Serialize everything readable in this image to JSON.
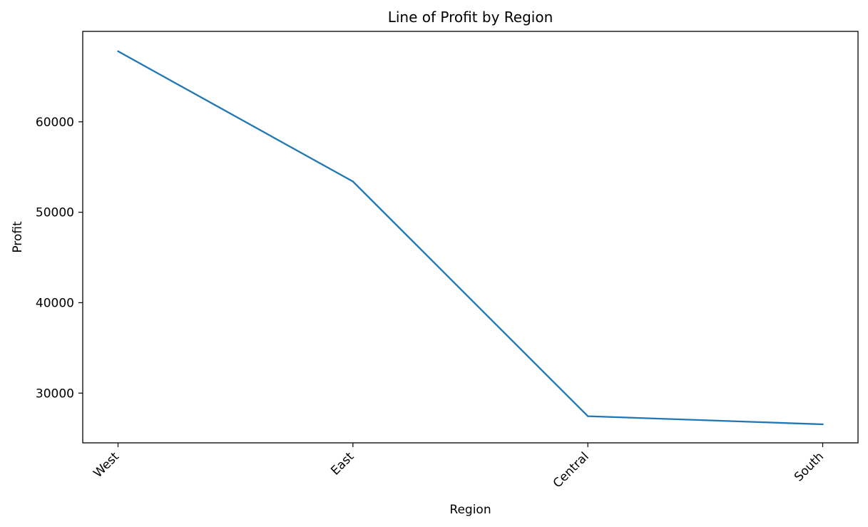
{
  "chart_data": {
    "type": "line",
    "title": "Line of Profit by Region",
    "xlabel": "Region",
    "ylabel": "Profit",
    "categories": [
      "West",
      "East",
      "Central",
      "South"
    ],
    "series": [
      {
        "values": [
          67800,
          53400,
          27450,
          26550
        ],
        "color": "#1f77b4"
      }
    ],
    "ylim": [
      24500,
      70000
    ],
    "yticks": [
      30000,
      40000,
      50000,
      60000
    ],
    "ytick_labels": [
      "30000",
      "40000",
      "50000",
      "60000"
    ],
    "grid": false,
    "legend": "none"
  }
}
